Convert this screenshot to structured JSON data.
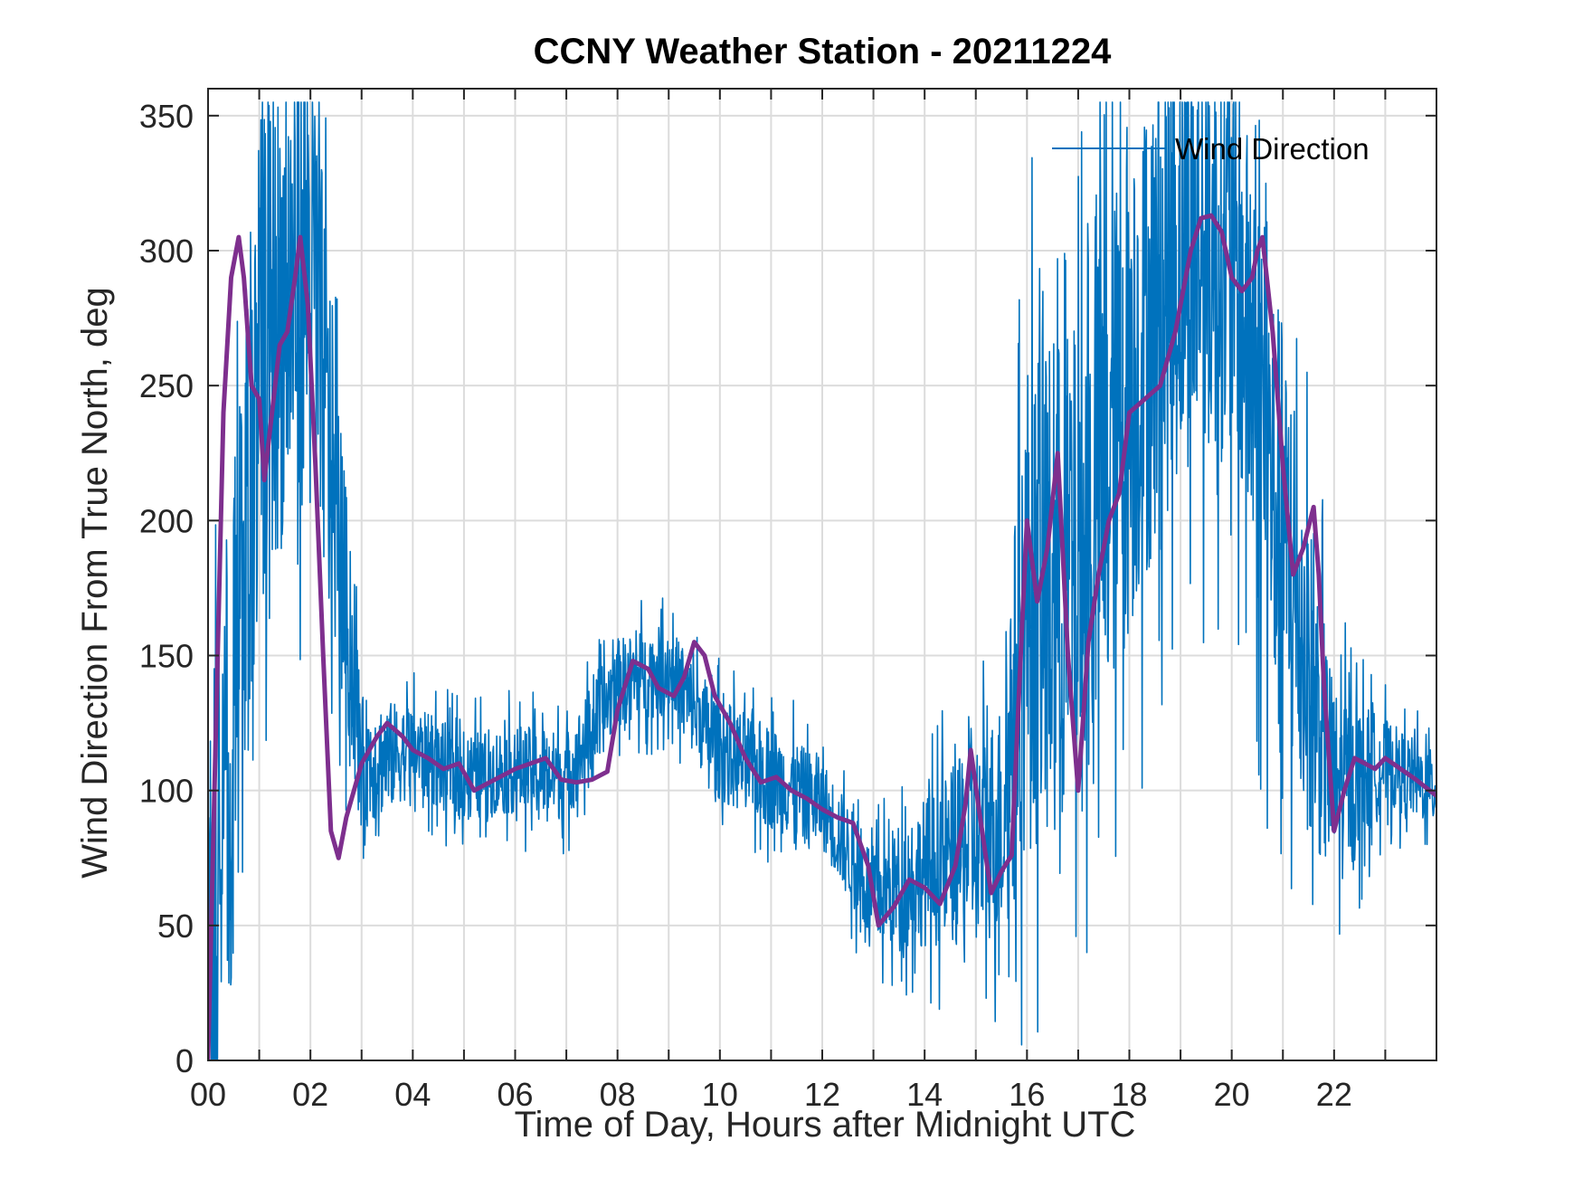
{
  "chart_data": {
    "type": "line",
    "title": "CCNY Weather Station - 20211224",
    "xlabel": "Time of Day, Hours after Midnight UTC",
    "ylabel": "Wind Direction From True North, deg",
    "xlim": [
      0,
      24
    ],
    "ylim": [
      0,
      360
    ],
    "grid": true,
    "legend": {
      "placement": "top-right"
    },
    "x_tick_labels": [
      "00",
      "02",
      "04",
      "06",
      "08",
      "10",
      "12",
      "14",
      "16",
      "18",
      "20",
      "22"
    ],
    "y_tick_labels": [
      "0",
      "50",
      "100",
      "150",
      "200",
      "250",
      "300",
      "350"
    ],
    "series": [
      {
        "name": "Wind Direction",
        "role": "raw",
        "color": "#0072BD",
        "x": [
          0,
          1,
          2,
          3,
          4,
          5,
          6,
          7,
          8,
          9,
          10,
          11,
          12,
          13,
          14,
          15,
          15.5,
          16,
          17,
          18,
          19,
          20,
          21,
          22,
          23,
          24
        ],
        "y_mean": [
          0,
          260,
          300,
          110,
          115,
          105,
          108,
          105,
          140,
          145,
          115,
          105,
          95,
          60,
          70,
          80,
          90,
          170,
          180,
          250,
          300,
          300,
          190,
          100,
          110,
          100
        ],
        "y_spread": [
          170,
          160,
          160,
          45,
          30,
          30,
          30,
          30,
          30,
          30,
          35,
          35,
          30,
          35,
          50,
          70,
          80,
          170,
          170,
          170,
          150,
          140,
          150,
          70,
          30,
          25
        ]
      },
      {
        "role": "smoothed",
        "color": "#7E2F8E",
        "x": [
          0,
          0.15,
          0.3,
          0.45,
          0.6,
          0.7,
          0.85,
          1.0,
          1.1,
          1.25,
          1.4,
          1.55,
          1.7,
          1.8,
          1.95,
          2.1,
          2.25,
          2.4,
          2.55,
          2.7,
          3.0,
          3.3,
          3.5,
          3.8,
          4.0,
          4.3,
          4.6,
          4.9,
          5.2,
          5.5,
          5.8,
          6.0,
          6.3,
          6.6,
          6.9,
          7.2,
          7.5,
          7.8,
          8.0,
          8.3,
          8.6,
          8.8,
          9.1,
          9.3,
          9.5,
          9.7,
          9.9,
          10.2,
          10.5,
          10.8,
          11.1,
          11.4,
          11.7,
          12.0,
          12.3,
          12.6,
          12.9,
          13.1,
          13.4,
          13.7,
          14.0,
          14.3,
          14.6,
          14.8,
          14.9,
          15.1,
          15.3,
          15.5,
          15.7,
          15.9,
          16.0,
          16.2,
          16.4,
          16.6,
          16.8,
          17.0,
          17.2,
          17.4,
          17.6,
          17.8,
          18.0,
          18.3,
          18.6,
          18.9,
          19.2,
          19.4,
          19.6,
          19.8,
          20.0,
          20.2,
          20.4,
          20.5,
          20.6,
          20.8,
          21.0,
          21.2,
          21.4,
          21.6,
          21.7,
          21.8,
          22.0,
          22.2,
          22.4,
          22.6,
          22.8,
          23.0,
          23.3,
          23.6,
          24.0
        ],
        "y": [
          0,
          120,
          240,
          290,
          305,
          290,
          250,
          245,
          215,
          240,
          265,
          270,
          290,
          305,
          280,
          220,
          150,
          85,
          75,
          90,
          110,
          120,
          125,
          120,
          115,
          112,
          108,
          110,
          100,
          103,
          106,
          108,
          110,
          112,
          104,
          103,
          104,
          107,
          130,
          148,
          145,
          138,
          135,
          142,
          155,
          150,
          135,
          125,
          112,
          103,
          105,
          100,
          97,
          93,
          90,
          88,
          72,
          50,
          57,
          67,
          64,
          58,
          72,
          95,
          115,
          88,
          62,
          70,
          76,
          160,
          200,
          170,
          190,
          225,
          150,
          100,
          155,
          180,
          200,
          210,
          240,
          245,
          250,
          270,
          300,
          312,
          313,
          307,
          290,
          285,
          290,
          300,
          305,
          270,
          220,
          180,
          190,
          205,
          180,
          140,
          85,
          100,
          112,
          110,
          108,
          112,
          108,
          104,
          98
        ]
      }
    ]
  }
}
